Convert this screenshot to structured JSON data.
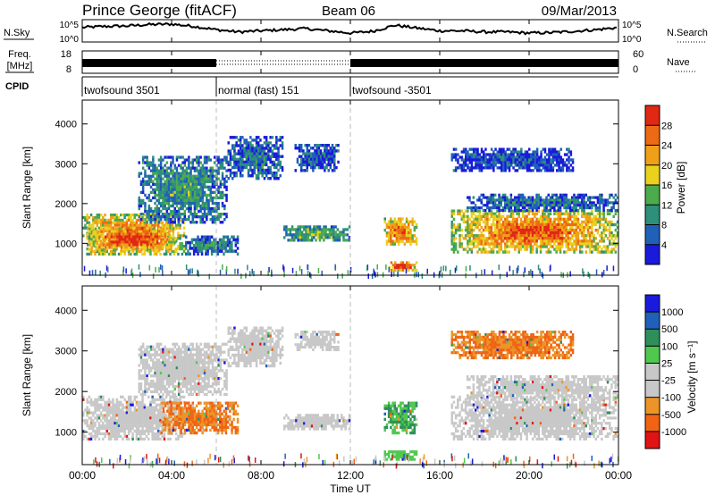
{
  "header": {
    "station": "Prince George (fitACF)",
    "beam": "Beam 06",
    "date": "09/Mar/2013"
  },
  "chart_data": [
    {
      "id": "noise",
      "type": "line",
      "left_label": "N.Sky",
      "right_label": "N.Search",
      "left_ticks": [
        "10^5",
        "10^0"
      ],
      "right_ticks": [
        "10^5",
        "10^0"
      ],
      "series": [
        {
          "name": "N.Search",
          "x": [
            0,
            1,
            2,
            3,
            4,
            5,
            6,
            7,
            8,
            9,
            10,
            11,
            12,
            13,
            14,
            15,
            16,
            17,
            18,
            19,
            20,
            21,
            22,
            23,
            24
          ],
          "y": [
            0.65,
            0.7,
            0.72,
            0.78,
            0.8,
            0.7,
            0.55,
            0.45,
            0.5,
            0.55,
            0.6,
            0.5,
            0.4,
            0.48,
            0.75,
            0.62,
            0.5,
            0.5,
            0.45,
            0.45,
            0.4,
            0.42,
            0.48,
            0.55,
            0.65
          ]
        }
      ],
      "xlim": [
        0,
        24
      ]
    },
    {
      "id": "freq-nave",
      "type": "line",
      "left_label_1": "Freq.",
      "left_label_2": "[MHz]",
      "right_label": "Nave",
      "left_ticks": [
        "18",
        "8"
      ],
      "right_ticks": [
        "60",
        "0"
      ],
      "segments": [
        {
          "x": [
            0,
            6
          ],
          "style": "dense"
        },
        {
          "x": [
            6,
            12
          ],
          "style": "dotted"
        },
        {
          "x": [
            12,
            24
          ],
          "style": "dense"
        }
      ],
      "xlim": [
        0,
        24
      ]
    },
    {
      "id": "cpid",
      "type": "table",
      "label": "CPID",
      "entries": [
        {
          "start": 0,
          "end": 6,
          "text": "twofsound 3501"
        },
        {
          "start": 6,
          "end": 12,
          "text": "normal (fast) 151"
        },
        {
          "start": 12,
          "end": 24,
          "text": "twofsound -3501"
        }
      ]
    },
    {
      "id": "power",
      "type": "heatmap",
      "ylabel": "Slant Range [km]",
      "yticks": [
        1000,
        2000,
        3000,
        4000
      ],
      "ylim": [
        200,
        4600
      ],
      "xlim": [
        0,
        24
      ],
      "colorbar_label": "Power [dB]",
      "colorbar_ticks": [
        "4",
        "8",
        "12",
        "16",
        "20",
        "24",
        "28"
      ],
      "colorscale": [
        "#1a1adc",
        "#2060b8",
        "#2e8f7a",
        "#4cab4c",
        "#e8d21e",
        "#f0a018",
        "#ec6a14",
        "#e02814"
      ],
      "regions": [
        {
          "x": [
            0,
            4.6
          ],
          "y": [
            700,
            1750
          ],
          "level": 0.82
        },
        {
          "x": [
            0.2,
            4.2
          ],
          "y": [
            800,
            1400
          ],
          "level": 0.95
        },
        {
          "x": [
            2.5,
            6.5
          ],
          "y": [
            1500,
            3200
          ],
          "level": 0.35
        },
        {
          "x": [
            4.6,
            7.0
          ],
          "y": [
            700,
            1200
          ],
          "level": 0.3
        },
        {
          "x": [
            6.5,
            9.0
          ],
          "y": [
            2600,
            3700
          ],
          "level": 0.25
        },
        {
          "x": [
            9.0,
            12.0
          ],
          "y": [
            1050,
            1450
          ],
          "level": 0.45
        },
        {
          "x": [
            9.5,
            11.5
          ],
          "y": [
            2800,
            3500
          ],
          "level": 0.2
        },
        {
          "x": [
            13.5,
            15.0
          ],
          "y": [
            950,
            1650
          ],
          "level": 0.85
        },
        {
          "x": [
            13.7,
            15.0
          ],
          "y": [
            300,
            550
          ],
          "level": 1.0
        },
        {
          "x": [
            16.5,
            24.0
          ],
          "y": [
            750,
            1850
          ],
          "level": 0.85
        },
        {
          "x": [
            17.2,
            24.0
          ],
          "y": [
            1800,
            2250
          ],
          "level": 0.25
        },
        {
          "x": [
            16.5,
            22.0
          ],
          "y": [
            2800,
            3400
          ],
          "level": 0.15
        }
      ]
    },
    {
      "id": "velocity",
      "type": "heatmap",
      "ylabel": "Slant Range [km]",
      "yticks": [
        1000,
        2000,
        3000,
        4000
      ],
      "ylim": [
        200,
        4600
      ],
      "xlim": [
        0,
        24
      ],
      "colorbar_label": "Velocity [m s⁻¹]",
      "colorbar_ticks": [
        "-1000",
        "-500",
        "-100",
        "-25",
        "25",
        "100",
        "500",
        "1000"
      ],
      "colorscale": [
        "#e01414",
        "#f06414",
        "#ec9428",
        "#c8c8c8",
        "#c8c8c8",
        "#50c850",
        "#2e8f5a",
        "#2060b8",
        "#1a1adc"
      ],
      "regions": [
        {
          "x": [
            0,
            4.6
          ],
          "y": [
            800,
            1900
          ],
          "level": "gray"
        },
        {
          "x": [
            3.5,
            7.0
          ],
          "y": [
            950,
            1750
          ],
          "level": "orange"
        },
        {
          "x": [
            2.5,
            6.5
          ],
          "y": [
            1900,
            3200
          ],
          "level": "gray"
        },
        {
          "x": [
            6.5,
            9.0
          ],
          "y": [
            2600,
            3600
          ],
          "level": "gray"
        },
        {
          "x": [
            9.0,
            12.0
          ],
          "y": [
            1050,
            1450
          ],
          "level": "gray"
        },
        {
          "x": [
            9.5,
            11.5
          ],
          "y": [
            3000,
            3500
          ],
          "level": "gray"
        },
        {
          "x": [
            13.5,
            15.0
          ],
          "y": [
            950,
            1750
          ],
          "level": "green"
        },
        {
          "x": [
            13.5,
            15.0
          ],
          "y": [
            300,
            550
          ],
          "level": "ltgreen"
        },
        {
          "x": [
            16.5,
            24.0
          ],
          "y": [
            800,
            1900
          ],
          "level": "gray"
        },
        {
          "x": [
            17.2,
            24.0
          ],
          "y": [
            1800,
            2400
          ],
          "level": "gray"
        },
        {
          "x": [
            16.5,
            22.0
          ],
          "y": [
            2800,
            3500
          ],
          "level": "orange"
        }
      ]
    }
  ],
  "x_axis": {
    "ticks": [
      "00:00",
      "04:00",
      "08:00",
      "12:00",
      "16:00",
      "20:00",
      "00:00"
    ],
    "label": "Time UT"
  }
}
